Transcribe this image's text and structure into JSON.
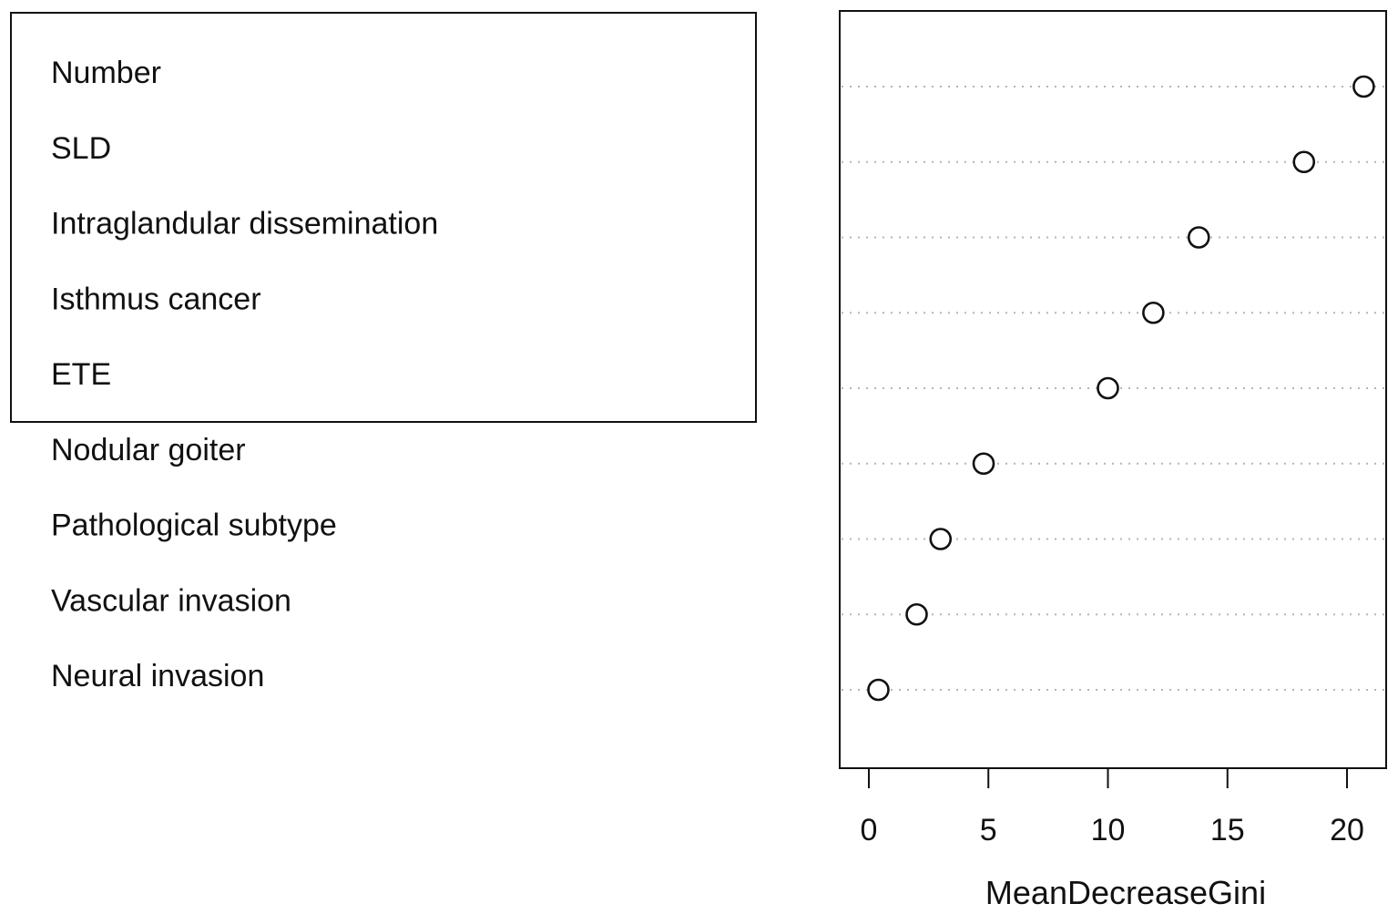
{
  "chart_data": {
    "type": "scatter",
    "title": "",
    "xlabel": "MeanDecreaseGini",
    "ylabel": "",
    "xlim": [
      -0.5,
      21.5
    ],
    "xticks": [
      "0",
      "5",
      "10",
      "15",
      "20"
    ],
    "grid": "dotted horizontal lines at each variable",
    "categories": [
      "Number",
      "SLD",
      "Intraglandular dissemination",
      "Isthmus cancer",
      "ETE",
      "Nodular goiter",
      "Pathological subtype",
      "Vascular invasion",
      "Neural invasion"
    ],
    "values": [
      20.7,
      18.2,
      13.8,
      11.9,
      10.0,
      4.8,
      3.0,
      2.0,
      0.4
    ],
    "highlighted_group": [
      "Number",
      "SLD",
      "Intraglandular dissemination",
      "Isthmus cancer",
      "ETE"
    ]
  }
}
